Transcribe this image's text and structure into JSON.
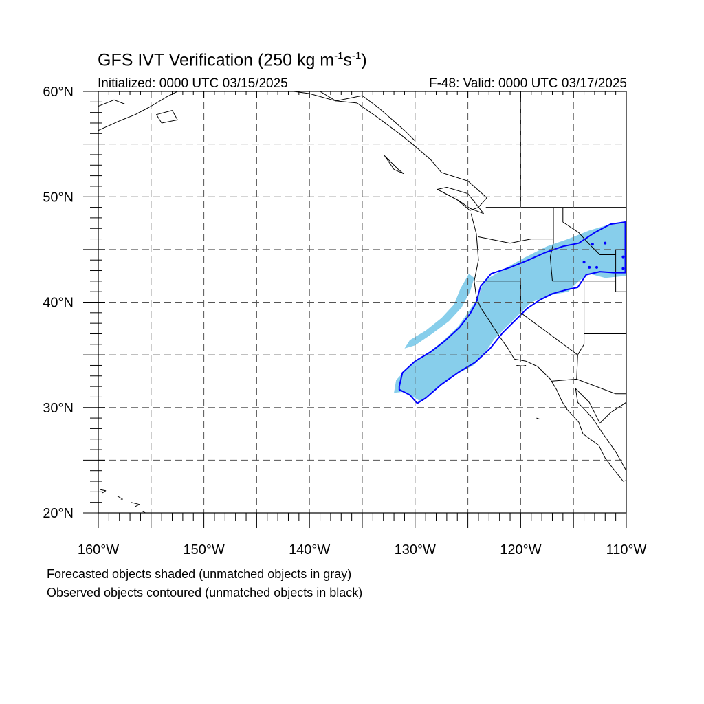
{
  "title": {
    "main": "GFS IVT Verification (250 kg m",
    "sup1": "-1",
    "mid": "s",
    "sup2": "-1",
    "end": ")"
  },
  "subtitle_left": "Initialized: 0000 UTC 03/15/2025",
  "subtitle_right": "F-48: Valid: 0000 UTC 03/17/2025",
  "footer": {
    "line1": "Forecasted objects shaded (unmatched objects in gray)",
    "line2": "Observed objects contoured (unmatched objects in black)"
  },
  "lat_labels": [
    {
      "lat": 60,
      "text": "60°N"
    },
    {
      "lat": 50,
      "text": "50°N"
    },
    {
      "lat": 40,
      "text": "40°N"
    },
    {
      "lat": 30,
      "text": "30°N"
    },
    {
      "lat": 20,
      "text": "20°N"
    }
  ],
  "lon_labels": [
    {
      "lon": -160,
      "text": "160°W"
    },
    {
      "lon": -150,
      "text": "150°W"
    },
    {
      "lon": -140,
      "text": "140°W"
    },
    {
      "lon": -130,
      "text": "130°W"
    },
    {
      "lon": -120,
      "text": "120°W"
    },
    {
      "lon": -110,
      "text": "110°W"
    }
  ],
  "extent": {
    "lon_min": -160,
    "lon_max": -110,
    "lat_min": 20,
    "lat_max": 60
  },
  "colors": {
    "forecast_shade": "#87ceeb",
    "observed_contour": "#0000ff",
    "coast": "#000000",
    "grid": "#555555"
  },
  "forecast_object": [
    [
      -132,
      31.4
    ],
    [
      -131.8,
      32.6
    ],
    [
      -130.5,
      34
    ],
    [
      -129,
      35
    ],
    [
      -127.5,
      36.2
    ],
    [
      -126,
      37.6
    ],
    [
      -125,
      39
    ],
    [
      -124,
      40.5
    ],
    [
      -123.5,
      42
    ],
    [
      -121.5,
      43.2
    ],
    [
      -119.5,
      44.3
    ],
    [
      -117.5,
      45.3
    ],
    [
      -115.5,
      46
    ],
    [
      -113.5,
      46.8
    ],
    [
      -111.5,
      47.4
    ],
    [
      -110,
      47.6
    ],
    [
      -110,
      42.5
    ],
    [
      -112,
      42.3
    ],
    [
      -113.5,
      42.7
    ],
    [
      -114.5,
      42
    ],
    [
      -115.5,
      41
    ],
    [
      -117,
      40.7
    ],
    [
      -119,
      40
    ],
    [
      -120,
      39
    ],
    [
      -121.5,
      37.5
    ],
    [
      -122.5,
      36.5
    ],
    [
      -123.5,
      35
    ],
    [
      -124.5,
      34
    ],
    [
      -126,
      33.2
    ],
    [
      -128,
      31.8
    ],
    [
      -129.5,
      30.6
    ],
    [
      -131,
      31.5
    ]
  ],
  "forecast_secondary": [
    [
      -131,
      35.6
    ],
    [
      -130.5,
      36.4
    ],
    [
      -129,
      37.3
    ],
    [
      -127.5,
      38.5
    ],
    [
      -126.3,
      39.8
    ],
    [
      -125.7,
      41.3
    ],
    [
      -124.9,
      42.7
    ],
    [
      -124.4,
      42.3
    ],
    [
      -124.8,
      41
    ],
    [
      -125.6,
      39.5
    ],
    [
      -126.8,
      38.2
    ],
    [
      -128.4,
      37
    ],
    [
      -130,
      35.9
    ]
  ],
  "observed_contour": [
    [
      -131.5,
      32
    ],
    [
      -131.2,
      33.3
    ],
    [
      -130,
      34.4
    ],
    [
      -128.5,
      35.3
    ],
    [
      -127.2,
      36.3
    ],
    [
      -125.8,
      37.6
    ],
    [
      -124.8,
      38.9
    ],
    [
      -124.2,
      40
    ],
    [
      -123.8,
      41.5
    ],
    [
      -122.8,
      42.7
    ],
    [
      -121,
      43.3
    ],
    [
      -119.5,
      43.9
    ],
    [
      -117.7,
      44.7
    ],
    [
      -116,
      45.3
    ],
    [
      -114.5,
      45.6
    ],
    [
      -113,
      46.6
    ],
    [
      -111.5,
      47.4
    ],
    [
      -110.1,
      47.6
    ],
    [
      -110.1,
      42.8
    ],
    [
      -111.2,
      42.8
    ],
    [
      -112.5,
      42.9
    ],
    [
      -113.8,
      42.6
    ],
    [
      -114.6,
      41.4
    ],
    [
      -115.6,
      41.2
    ],
    [
      -117,
      40.8
    ],
    [
      -118.2,
      40.2
    ],
    [
      -119.4,
      39.4
    ],
    [
      -120.4,
      38.4
    ],
    [
      -121.7,
      37.1
    ],
    [
      -122.9,
      35.6
    ],
    [
      -124.3,
      34.3
    ],
    [
      -125.8,
      33.4
    ],
    [
      -127.5,
      32.2
    ],
    [
      -129,
      30.9
    ],
    [
      -129.8,
      30.4
    ],
    [
      -130.5,
      31.2
    ],
    [
      -131.5,
      31.7
    ]
  ]
}
